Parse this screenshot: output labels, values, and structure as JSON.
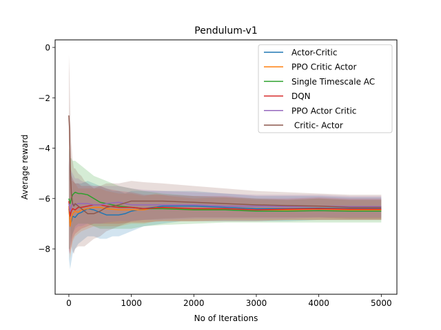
{
  "chart_data": {
    "type": "line",
    "title": "Pendulum-v1",
    "xlabel": "No of Iterations",
    "ylabel": "Average reward",
    "xlim": [
      -220,
      5250
    ],
    "ylim": [
      -9.8,
      0.3
    ],
    "xticks": [
      0,
      1000,
      2000,
      3000,
      4000,
      5000
    ],
    "xtick_labels": [
      "0",
      "1000",
      "2000",
      "3000",
      "4000",
      "5000"
    ],
    "yticks": [
      -8,
      -6,
      -4,
      -2,
      0
    ],
    "ytick_labels": [
      "−8",
      "−6",
      "−4",
      "−2",
      "0"
    ],
    "legend_position": "top-right",
    "grid": false,
    "series": [
      {
        "name": "Actor-Critic",
        "color": "#1f77b4",
        "x": [
          0,
          20,
          40,
          60,
          100,
          150,
          200,
          300,
          400,
          500,
          600,
          700,
          800,
          900,
          1000,
          1200,
          1500,
          1800,
          2000,
          2500,
          3000,
          3500,
          4000,
          4500,
          5000
        ],
        "y": [
          -6.4,
          -7.0,
          -6.9,
          -6.7,
          -6.75,
          -6.6,
          -6.55,
          -6.4,
          -6.45,
          -6.55,
          -6.65,
          -6.65,
          -6.65,
          -6.6,
          -6.5,
          -6.4,
          -6.3,
          -6.3,
          -6.3,
          -6.35,
          -6.4,
          -6.4,
          -6.38,
          -6.4,
          -6.4
        ],
        "band": [
          [
            -8.4,
            -4.5
          ],
          [
            -8.8,
            -4.9
          ],
          [
            -8.5,
            -5.0
          ],
          [
            -8.2,
            -5.3
          ],
          [
            -8.0,
            -5.4
          ],
          [
            -7.8,
            -5.4
          ],
          [
            -7.7,
            -5.4
          ],
          [
            -7.5,
            -5.3
          ],
          [
            -7.5,
            -5.4
          ],
          [
            -7.6,
            -5.5
          ],
          [
            -7.6,
            -5.6
          ],
          [
            -7.5,
            -5.7
          ],
          [
            -7.5,
            -5.7
          ],
          [
            -7.4,
            -5.8
          ],
          [
            -7.3,
            -5.7
          ],
          [
            -7.1,
            -5.7
          ],
          [
            -7.0,
            -5.7
          ],
          [
            -6.9,
            -5.7
          ],
          [
            -6.9,
            -5.7
          ],
          [
            -6.9,
            -5.8
          ],
          [
            -6.9,
            -5.9
          ],
          [
            -6.9,
            -5.9
          ],
          [
            -6.85,
            -5.9
          ],
          [
            -6.85,
            -5.95
          ],
          [
            -6.85,
            -5.95
          ]
        ]
      },
      {
        "name": "PPO Critic Actor",
        "color": "#ff7f0e",
        "x": [
          0,
          20,
          40,
          60,
          100,
          150,
          200,
          300,
          400,
          500,
          600,
          800,
          1000,
          1200,
          1400,
          1600,
          2000,
          2500,
          3000,
          3500,
          4000,
          4500,
          5000
        ],
        "y": [
          -6.3,
          -7.1,
          -6.8,
          -6.6,
          -6.5,
          -6.55,
          -6.45,
          -6.4,
          -6.35,
          -6.35,
          -6.4,
          -6.45,
          -6.45,
          -6.45,
          -6.35,
          -6.4,
          -6.45,
          -6.4,
          -6.45,
          -6.45,
          -6.42,
          -6.45,
          -6.45
        ],
        "band": [
          [
            -8.0,
            -4.6
          ],
          [
            -8.4,
            -5.2
          ],
          [
            -8.0,
            -5.3
          ],
          [
            -7.7,
            -5.3
          ],
          [
            -7.5,
            -5.4
          ],
          [
            -7.4,
            -5.6
          ],
          [
            -7.3,
            -5.6
          ],
          [
            -7.2,
            -5.6
          ],
          [
            -7.1,
            -5.6
          ],
          [
            -7.1,
            -5.6
          ],
          [
            -7.1,
            -5.7
          ],
          [
            -7.1,
            -5.8
          ],
          [
            -7.0,
            -5.8
          ],
          [
            -7.0,
            -5.9
          ],
          [
            -6.9,
            -5.8
          ],
          [
            -6.9,
            -5.9
          ],
          [
            -6.9,
            -6.0
          ],
          [
            -6.85,
            -5.95
          ],
          [
            -6.85,
            -6.05
          ],
          [
            -6.85,
            -6.05
          ],
          [
            -6.85,
            -6.0
          ],
          [
            -6.85,
            -6.05
          ],
          [
            -6.85,
            -6.05
          ]
        ]
      },
      {
        "name": "Single Timescale AC",
        "color": "#2ca02c",
        "x": [
          0,
          20,
          40,
          60,
          100,
          150,
          200,
          300,
          400,
          500,
          600,
          800,
          1000,
          1200,
          1500,
          2000,
          2500,
          3000,
          3500,
          4000,
          4500,
          5000
        ],
        "y": [
          -6.0,
          -6.2,
          -6.0,
          -5.85,
          -5.75,
          -5.8,
          -5.8,
          -5.85,
          -6.0,
          -6.15,
          -6.2,
          -6.3,
          -6.35,
          -6.4,
          -6.4,
          -6.45,
          -6.45,
          -6.5,
          -6.5,
          -6.48,
          -6.5,
          -6.5
        ],
        "band": [
          [
            -8.0,
            -4.0
          ],
          [
            -8.0,
            -4.4
          ],
          [
            -7.6,
            -4.4
          ],
          [
            -7.4,
            -4.5
          ],
          [
            -7.1,
            -4.5
          ],
          [
            -7.0,
            -4.6
          ],
          [
            -7.0,
            -4.7
          ],
          [
            -7.0,
            -4.9
          ],
          [
            -7.1,
            -5.1
          ],
          [
            -7.2,
            -5.2
          ],
          [
            -7.2,
            -5.3
          ],
          [
            -7.2,
            -5.5
          ],
          [
            -7.2,
            -5.6
          ],
          [
            -7.1,
            -5.7
          ],
          [
            -7.05,
            -5.8
          ],
          [
            -7.0,
            -5.9
          ],
          [
            -6.95,
            -5.95
          ],
          [
            -6.95,
            -6.0
          ],
          [
            -6.95,
            -6.05
          ],
          [
            -6.95,
            -6.0
          ],
          [
            -6.95,
            -6.05
          ],
          [
            -6.95,
            -6.05
          ]
        ]
      },
      {
        "name": "DQN",
        "color": "#d62728",
        "x": [
          0,
          20,
          40,
          60,
          100,
          150,
          200,
          300,
          400,
          500,
          600,
          800,
          1000,
          1200,
          1500,
          2000,
          2500,
          3000,
          3500,
          4000,
          4500,
          5000
        ],
        "y": [
          -6.1,
          -6.7,
          -6.5,
          -6.4,
          -6.45,
          -6.35,
          -6.35,
          -6.3,
          -6.25,
          -6.25,
          -6.3,
          -6.35,
          -6.35,
          -6.4,
          -6.35,
          -6.4,
          -6.4,
          -6.45,
          -6.42,
          -6.4,
          -6.42,
          -6.42
        ],
        "band": [
          [
            -8.0,
            -4.2
          ],
          [
            -8.2,
            -5.0
          ],
          [
            -7.9,
            -5.1
          ],
          [
            -7.6,
            -5.2
          ],
          [
            -7.4,
            -5.4
          ],
          [
            -7.3,
            -5.4
          ],
          [
            -7.2,
            -5.5
          ],
          [
            -7.1,
            -5.5
          ],
          [
            -7.0,
            -5.5
          ],
          [
            -7.0,
            -5.5
          ],
          [
            -7.0,
            -5.6
          ],
          [
            -7.0,
            -5.7
          ],
          [
            -6.95,
            -5.75
          ],
          [
            -6.95,
            -5.85
          ],
          [
            -6.9,
            -5.85
          ],
          [
            -6.9,
            -5.9
          ],
          [
            -6.9,
            -5.9
          ],
          [
            -6.9,
            -6.0
          ],
          [
            -6.85,
            -6.0
          ],
          [
            -6.85,
            -5.95
          ],
          [
            -6.85,
            -6.0
          ],
          [
            -6.85,
            -6.0
          ]
        ]
      },
      {
        "name": "PPO Actor Critic",
        "color": "#9467bd",
        "x": [
          0,
          20,
          40,
          60,
          100,
          150,
          200,
          300,
          400,
          500,
          600,
          800,
          1000,
          1200,
          1500,
          2000,
          2500,
          3000,
          3500,
          4000,
          4500,
          5000
        ],
        "y": [
          -6.2,
          -6.5,
          -6.3,
          -6.2,
          -6.25,
          -6.2,
          -6.2,
          -6.2,
          -6.25,
          -6.25,
          -6.2,
          -6.15,
          -6.25,
          -6.25,
          -6.25,
          -6.25,
          -6.3,
          -6.3,
          -6.32,
          -6.3,
          -6.32,
          -6.32
        ],
        "band": [
          [
            -8.2,
            -4.0
          ],
          [
            -8.0,
            -4.8
          ],
          [
            -7.7,
            -4.9
          ],
          [
            -7.4,
            -5.0
          ],
          [
            -7.2,
            -5.2
          ],
          [
            -7.1,
            -5.2
          ],
          [
            -7.1,
            -5.3
          ],
          [
            -7.0,
            -5.4
          ],
          [
            -7.0,
            -5.5
          ],
          [
            -7.0,
            -5.5
          ],
          [
            -6.95,
            -5.5
          ],
          [
            -6.9,
            -5.5
          ],
          [
            -6.9,
            -5.6
          ],
          [
            -6.85,
            -5.65
          ],
          [
            -6.85,
            -5.7
          ],
          [
            -6.8,
            -5.75
          ],
          [
            -6.8,
            -5.8
          ],
          [
            -6.8,
            -5.85
          ],
          [
            -6.8,
            -5.85
          ],
          [
            -6.75,
            -5.85
          ],
          [
            -6.75,
            -5.9
          ],
          [
            -6.75,
            -5.9
          ]
        ]
      },
      {
        "name": " Critic- Actor",
        "color": "#8c564b",
        "x": [
          0,
          10,
          20,
          30,
          40,
          60,
          80,
          100,
          150,
          200,
          250,
          300,
          400,
          500,
          600,
          800,
          1000,
          1200,
          1500,
          2000,
          2500,
          3000,
          3500,
          4000,
          4500,
          5000
        ],
        "y": [
          -2.7,
          -3.2,
          -4.5,
          -5.3,
          -5.8,
          -6.2,
          -6.3,
          -6.2,
          -6.3,
          -6.4,
          -6.5,
          -6.6,
          -6.6,
          -6.5,
          -6.35,
          -6.25,
          -6.1,
          -6.1,
          -6.1,
          -6.15,
          -6.2,
          -6.25,
          -6.28,
          -6.3,
          -6.35,
          -6.35
        ],
        "band": [
          [
            -5.2,
            -0.3
          ],
          [
            -5.8,
            -1.0
          ],
          [
            -7.0,
            -2.2
          ],
          [
            -7.6,
            -3.2
          ],
          [
            -7.9,
            -3.8
          ],
          [
            -8.1,
            -4.5
          ],
          [
            -8.2,
            -4.8
          ],
          [
            -8.0,
            -4.8
          ],
          [
            -7.9,
            -5.0
          ],
          [
            -7.9,
            -5.1
          ],
          [
            -7.9,
            -5.3
          ],
          [
            -7.8,
            -5.4
          ],
          [
            -7.6,
            -5.6
          ],
          [
            -7.5,
            -5.5
          ],
          [
            -7.3,
            -5.4
          ],
          [
            -7.1,
            -5.4
          ],
          [
            -6.9,
            -5.3
          ],
          [
            -6.85,
            -5.35
          ],
          [
            -6.8,
            -5.4
          ],
          [
            -6.75,
            -5.5
          ],
          [
            -6.75,
            -5.6
          ],
          [
            -6.75,
            -5.7
          ],
          [
            -6.75,
            -5.75
          ],
          [
            -6.75,
            -5.8
          ],
          [
            -6.8,
            -5.85
          ],
          [
            -6.8,
            -5.85
          ]
        ]
      }
    ]
  }
}
